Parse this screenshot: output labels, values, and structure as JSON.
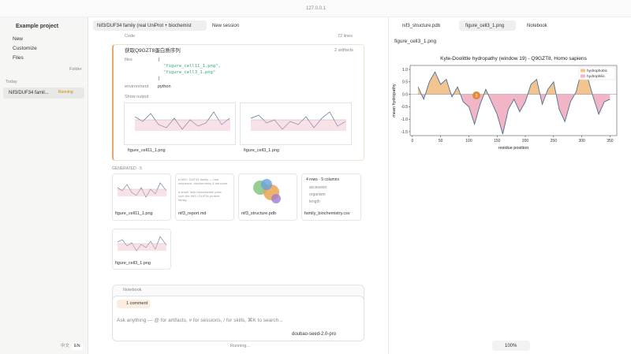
{
  "browser": {
    "url": "127.0.0.1"
  },
  "sidebar": {
    "project": "Example project",
    "menu": [
      "New",
      "Customize",
      "Files"
    ],
    "folder": "Folder",
    "section": "Today",
    "sessions": [
      {
        "title": "Nif3/DUF34 famil...",
        "status": "Running"
      }
    ],
    "languages": [
      "中文",
      "EN"
    ]
  },
  "main": {
    "tabs": [
      "Nif3/DUF34 family (real UniProt + biochemist",
      "New session"
    ],
    "code": {
      "label": "Code",
      "lines": "72 lines"
    },
    "step": {
      "title": "获取Q9GZT8蛋白质序列",
      "artifacts": "2 artifacts",
      "files_label": "files",
      "files_code": [
        "[",
        "\"figure_cell11_1.png\",",
        "\"figure_cell3_1.png\"",
        "]"
      ],
      "environment_label": "environment",
      "environment": "python",
      "show_output": "Show output",
      "outputs": [
        "figure_cell11_1.png",
        "figure_cell3_1.png"
      ]
    },
    "generated": "GENERATED · 5",
    "artifacts": [
      {
        "name": "figure_cell11_1.png"
      },
      {
        "name": "nif3_report.md",
        "preview": [
          "# Nif3 / DUF34 family — real",
          "sequence, biochemistry & structure",
          "",
          "# small, fully reproducible pass",
          "over the Nif3 / DUF34 protein",
          "family."
        ]
      },
      {
        "name": "nif3_structure.pdb"
      },
      {
        "name": "family_biochemistry.csv",
        "preview": [
          "4 rows · 9 columns",
          "accession",
          "organism",
          "length"
        ]
      },
      {
        "name": "figure_cell3_1.png"
      }
    ],
    "notebook": "Notebook",
    "comments": "1 comment",
    "placeholder": "Ask anything — @ for artifacts, # for sessions, / for skills, ⌘K to search...",
    "model": "doubao-seed-2.0-pro",
    "status": "Running..."
  },
  "preview": {
    "tabs": [
      "nif3_structure.pdb",
      "figure_cell3_1.png",
      "Notebook"
    ],
    "file": "figure_cell3_1.png",
    "zoom": "100%",
    "chart": {
      "type": "line",
      "title": "Kyte-Doolittle hydropathy (window 19) - Q9GZT8, Homo sapiens",
      "xlabel": "residue position",
      "ylabel": "mean hydropathy",
      "marker": "3",
      "x": [
        10,
        20,
        30,
        40,
        50,
        60,
        70,
        80,
        90,
        100,
        110,
        120,
        130,
        140,
        150,
        160,
        170,
        180,
        190,
        200,
        210,
        220,
        230,
        240,
        250,
        260,
        270,
        280,
        290,
        300,
        310,
        320,
        330,
        340,
        350
      ],
      "values": [
        0.3,
        -0.2,
        0.5,
        0.9,
        0.4,
        0.6,
        -0.1,
        0.3,
        -0.3,
        -0.5,
        -1.2,
        -0.4,
        0.2,
        -0.3,
        -0.8,
        -1.6,
        -0.6,
        -0.2,
        -0.7,
        -0.3,
        0.4,
        0.6,
        -0.4,
        0.2,
        0.5,
        -0.6,
        -1.1,
        -0.3,
        0.1,
        1.0,
        0.7,
        -0.1,
        -0.8,
        -0.3,
        -0.2
      ],
      "color": "#4d6f91",
      "fills": [
        {
          "name": "hydrophobic",
          "color": "#f2c48f"
        },
        {
          "name": "hydrophilic",
          "color": "#f1b5c6"
        }
      ],
      "xlim": [
        -4,
        362
      ],
      "ylim": [
        -1.66,
        1.16
      ],
      "xticks": [
        0,
        50,
        100,
        150,
        200,
        250,
        300,
        350
      ],
      "yticks": [
        {
          "value": 1,
          "label": "1.0"
        },
        0.5,
        {
          "value": 0,
          "label": "0.0"
        },
        -0.5,
        {
          "value": -1,
          "label": "-1.0"
        },
        -1.5
      ]
    }
  }
}
